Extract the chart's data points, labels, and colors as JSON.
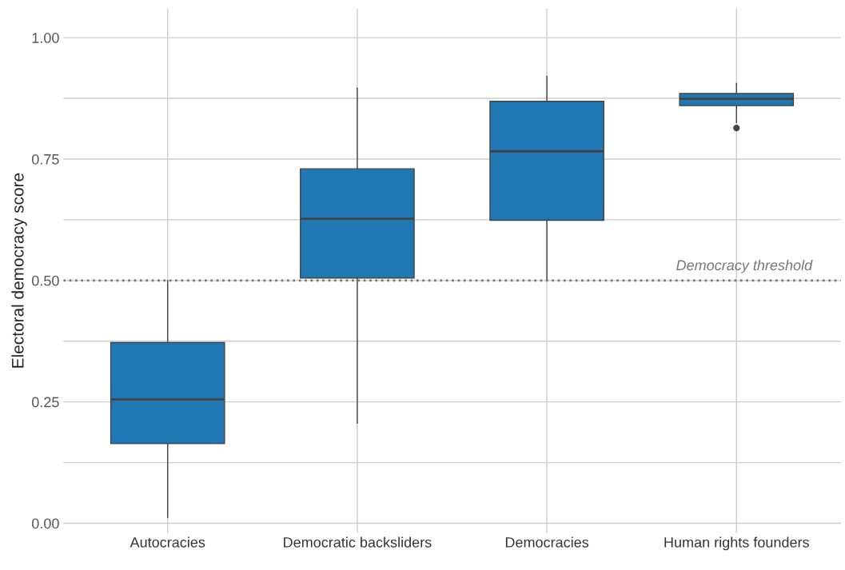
{
  "chart_data": {
    "type": "box",
    "ylabel": "Electoral democracy score",
    "categories": [
      "Autocracies",
      "Democratic backsliders",
      "Democracies",
      "Human rights founders"
    ],
    "boxes": [
      {
        "low": 0.012,
        "q1": 0.164,
        "median": 0.255,
        "q3": 0.372,
        "high": 0.5
      },
      {
        "low": 0.206,
        "q1": 0.505,
        "median": 0.627,
        "q3": 0.73,
        "high": 0.896
      },
      {
        "low": 0.5,
        "q1": 0.624,
        "median": 0.766,
        "q3": 0.869,
        "high": 0.921
      },
      {
        "low": 0.825,
        "q1": 0.86,
        "median": 0.874,
        "q3": 0.885,
        "high": 0.906,
        "outliers": [
          0.814
        ]
      }
    ],
    "color": "#1f77b4",
    "ylim": [
      -0.02,
      1.06
    ],
    "yticks": [
      {
        "value": 0,
        "label": "0.00"
      },
      {
        "value": 0.25,
        "label": "0.25"
      },
      {
        "value": 0.5,
        "label": "0.50"
      },
      {
        "value": 0.75,
        "label": "0.75"
      },
      {
        "value": 1,
        "label": "1.00"
      }
    ],
    "ref_lines": [
      {
        "axis": "y",
        "value": 0.5,
        "label": "Democracy threshold",
        "color": "#777777",
        "line_style": "dotted"
      }
    ],
    "grid": true
  }
}
